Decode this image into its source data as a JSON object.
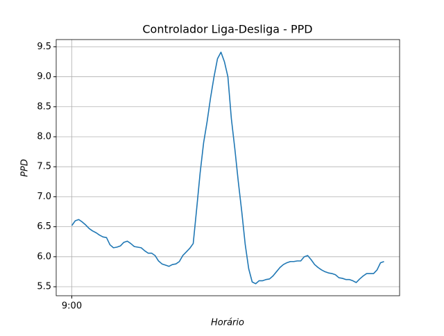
{
  "chart_data": {
    "type": "line",
    "title": "Controlador Liga-Desliga - PPD",
    "xlabel": "Horário",
    "ylabel": "PPD",
    "categories": [
      "9:00",
      null,
      null,
      null,
      null,
      null,
      null,
      null,
      null,
      null,
      null,
      null,
      null,
      null,
      null,
      null,
      null,
      null,
      null,
      null,
      null,
      null,
      null,
      null,
      null,
      null,
      null,
      null,
      null,
      null,
      null,
      null,
      null,
      null,
      null,
      null,
      null,
      null,
      null,
      null,
      null,
      null,
      null,
      null,
      null,
      null,
      null,
      null,
      null,
      null,
      null,
      null,
      null,
      null,
      null,
      null,
      null,
      null,
      null,
      null,
      null,
      null,
      null,
      null,
      null,
      null,
      null,
      null,
      null,
      null,
      null,
      null,
      null,
      null,
      null,
      null,
      null,
      null,
      null,
      null,
      null,
      null,
      null,
      null,
      null,
      null,
      null,
      null,
      null,
      null,
      null
    ],
    "series": [
      {
        "name": "PPD",
        "color": "#1f77b4",
        "values": [
          6.52,
          6.6,
          6.62,
          6.58,
          6.53,
          6.47,
          6.43,
          6.4,
          6.36,
          6.33,
          6.32,
          6.2,
          6.15,
          6.16,
          6.18,
          6.24,
          6.26,
          6.22,
          6.17,
          6.16,
          6.15,
          6.1,
          6.06,
          6.06,
          6.02,
          5.93,
          5.88,
          5.86,
          5.84,
          5.87,
          5.88,
          5.92,
          6.02,
          6.08,
          6.14,
          6.22,
          6.8,
          7.4,
          7.9,
          8.25,
          8.65,
          9.0,
          9.3,
          9.41,
          9.25,
          9.0,
          8.3,
          7.8,
          7.25,
          6.75,
          6.2,
          5.8,
          5.58,
          5.55,
          5.6,
          5.6,
          5.62,
          5.63,
          5.68,
          5.75,
          5.82,
          5.87,
          5.9,
          5.92,
          5.92,
          5.93,
          5.93,
          6.0,
          6.02,
          5.95,
          5.87,
          5.82,
          5.78,
          5.75,
          5.73,
          5.72,
          5.7,
          5.65,
          5.64,
          5.62,
          5.62,
          5.6,
          5.57,
          5.63,
          5.68,
          5.72,
          5.72,
          5.72,
          5.78,
          5.9,
          5.92
        ]
      }
    ],
    "ylim": [
      5.35,
      9.62
    ],
    "yticks": [
      5.5,
      {
        "value": 6,
        "label": "6.0"
      },
      6.5,
      {
        "value": 7,
        "label": "7.0"
      },
      7.5,
      {
        "value": 8,
        "label": "8.0"
      },
      8.5,
      {
        "value": 9,
        "label": "9.0"
      },
      9.5
    ],
    "grid": true
  }
}
